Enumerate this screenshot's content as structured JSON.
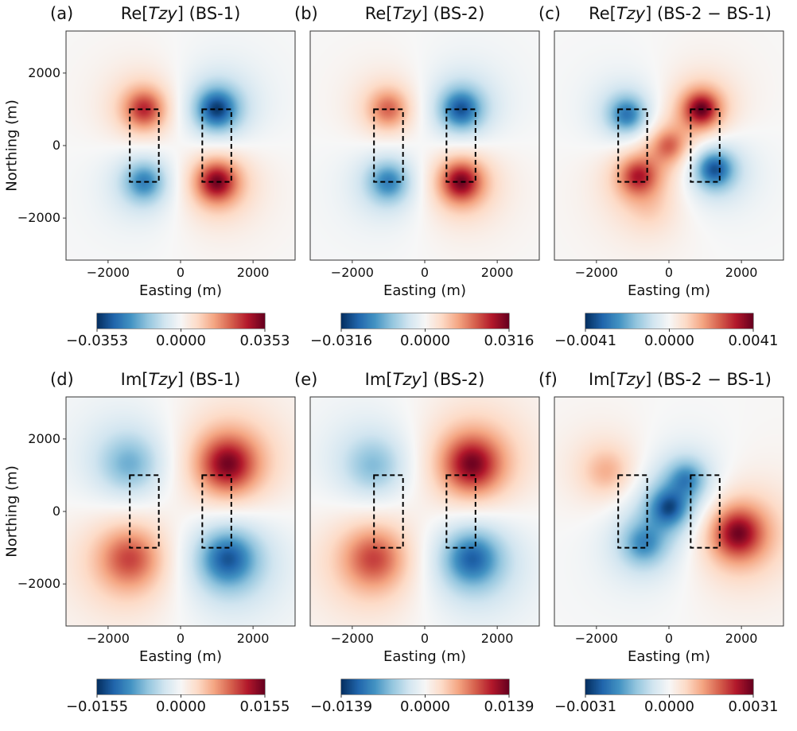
{
  "chart_data": [
    {
      "type": "heatmap",
      "panel_label": "(a)",
      "title": {
        "prefix": "Re[",
        "italic": "Tzy",
        "suffix": "] (BS-1)"
      },
      "xlabel": "Easting (m)",
      "ylabel": "Northing (m)",
      "xlim": [
        -3160,
        3160
      ],
      "ylim": [
        -3160,
        3160
      ],
      "xticks": [
        -2000,
        0,
        2000
      ],
      "yticks": [
        -2000,
        0,
        2000
      ],
      "xtick_labels": [
        "−2000",
        "0",
        "2000"
      ],
      "ytick_labels": [
        "−2000",
        "0",
        "2000"
      ],
      "colormap": "RdBu_r",
      "vmin": -0.0353,
      "vmax": 0.0353,
      "colorbar_ticks": [
        "−0.0353",
        "0.0000",
        "0.0353"
      ],
      "bodies": [
        {
          "x": [
            -1400,
            -600
          ],
          "y": [
            -1000,
            1000
          ]
        },
        {
          "x": [
            600,
            1400
          ],
          "y": [
            -1000,
            1000
          ]
        }
      ]
    },
    {
      "type": "heatmap",
      "panel_label": "(b)",
      "title": {
        "prefix": "Re[",
        "italic": "Tzy",
        "suffix": "] (BS-2)"
      },
      "xlabel": "Easting (m)",
      "ylabel": "",
      "xlim": [
        -3160,
        3160
      ],
      "ylim": [
        -3160,
        3160
      ],
      "xticks": [
        -2000,
        0,
        2000
      ],
      "yticks": [],
      "xtick_labels": [
        "−2000",
        "0",
        "2000"
      ],
      "ytick_labels": [],
      "colormap": "RdBu_r",
      "vmin": -0.0316,
      "vmax": 0.0316,
      "colorbar_ticks": [
        "−0.0316",
        "0.0000",
        "0.0316"
      ],
      "bodies": [
        {
          "x": [
            -1400,
            -600
          ],
          "y": [
            -1000,
            1000
          ]
        },
        {
          "x": [
            600,
            1400
          ],
          "y": [
            -1000,
            1000
          ]
        }
      ]
    },
    {
      "type": "heatmap",
      "panel_label": "(c)",
      "title": {
        "prefix": "Re[",
        "italic": "Tzy",
        "suffix": "] (BS-2 − BS-1)"
      },
      "xlabel": "Easting (m)",
      "ylabel": "",
      "xlim": [
        -3160,
        3160
      ],
      "ylim": [
        -3160,
        3160
      ],
      "xticks": [
        -2000,
        0,
        2000
      ],
      "yticks": [],
      "xtick_labels": [
        "−2000",
        "0",
        "2000"
      ],
      "ytick_labels": [],
      "colormap": "RdBu_r",
      "vmin": -0.0041,
      "vmax": 0.0041,
      "colorbar_ticks": [
        "−0.0041",
        "0.0000",
        "0.0041"
      ],
      "bodies": [
        {
          "x": [
            -1400,
            -600
          ],
          "y": [
            -1000,
            1000
          ]
        },
        {
          "x": [
            600,
            1400
          ],
          "y": [
            -1000,
            1000
          ]
        }
      ]
    },
    {
      "type": "heatmap",
      "panel_label": "(d)",
      "title": {
        "prefix": "Im[",
        "italic": "Tzy",
        "suffix": "] (BS-1)"
      },
      "xlabel": "Easting (m)",
      "ylabel": "Northing (m)",
      "xlim": [
        -3160,
        3160
      ],
      "ylim": [
        -3160,
        3160
      ],
      "xticks": [
        -2000,
        0,
        2000
      ],
      "yticks": [
        -2000,
        0,
        2000
      ],
      "xtick_labels": [
        "−2000",
        "0",
        "2000"
      ],
      "ytick_labels": [
        "−2000",
        "0",
        "2000"
      ],
      "colormap": "RdBu_r",
      "vmin": -0.0155,
      "vmax": 0.0155,
      "colorbar_ticks": [
        "−0.0155",
        "0.0000",
        "0.0155"
      ],
      "bodies": [
        {
          "x": [
            -1400,
            -600
          ],
          "y": [
            -1000,
            1000
          ]
        },
        {
          "x": [
            600,
            1400
          ],
          "y": [
            -1000,
            1000
          ]
        }
      ]
    },
    {
      "type": "heatmap",
      "panel_label": "(e)",
      "title": {
        "prefix": "Im[",
        "italic": "Tzy",
        "suffix": "] (BS-2)"
      },
      "xlabel": "Easting (m)",
      "ylabel": "",
      "xlim": [
        -3160,
        3160
      ],
      "ylim": [
        -3160,
        3160
      ],
      "xticks": [
        -2000,
        0,
        2000
      ],
      "yticks": [],
      "xtick_labels": [
        "−2000",
        "0",
        "2000"
      ],
      "ytick_labels": [],
      "colormap": "RdBu_r",
      "vmin": -0.0139,
      "vmax": 0.0139,
      "colorbar_ticks": [
        "−0.0139",
        "0.0000",
        "0.0139"
      ],
      "bodies": [
        {
          "x": [
            -1400,
            -600
          ],
          "y": [
            -1000,
            1000
          ]
        },
        {
          "x": [
            600,
            1400
          ],
          "y": [
            -1000,
            1000
          ]
        }
      ]
    },
    {
      "type": "heatmap",
      "panel_label": "(f)",
      "title": {
        "prefix": "Im[",
        "italic": "Tzy",
        "suffix": "] (BS-2 − BS-1)"
      },
      "xlabel": "Easting (m)",
      "ylabel": "",
      "xlim": [
        -3160,
        3160
      ],
      "ylim": [
        -3160,
        3160
      ],
      "xticks": [
        -2000,
        0,
        2000
      ],
      "yticks": [],
      "xtick_labels": [
        "−2000",
        "0",
        "2000"
      ],
      "ytick_labels": [],
      "colormap": "RdBu_r",
      "vmin": -0.0031,
      "vmax": 0.0031,
      "colorbar_ticks": [
        "−0.0031",
        "0.0000",
        "0.0031"
      ],
      "bodies": [
        {
          "x": [
            -1400,
            -600
          ],
          "y": [
            -1000,
            1000
          ]
        },
        {
          "x": [
            600,
            1400
          ],
          "y": [
            -1000,
            1000
          ]
        }
      ]
    }
  ]
}
